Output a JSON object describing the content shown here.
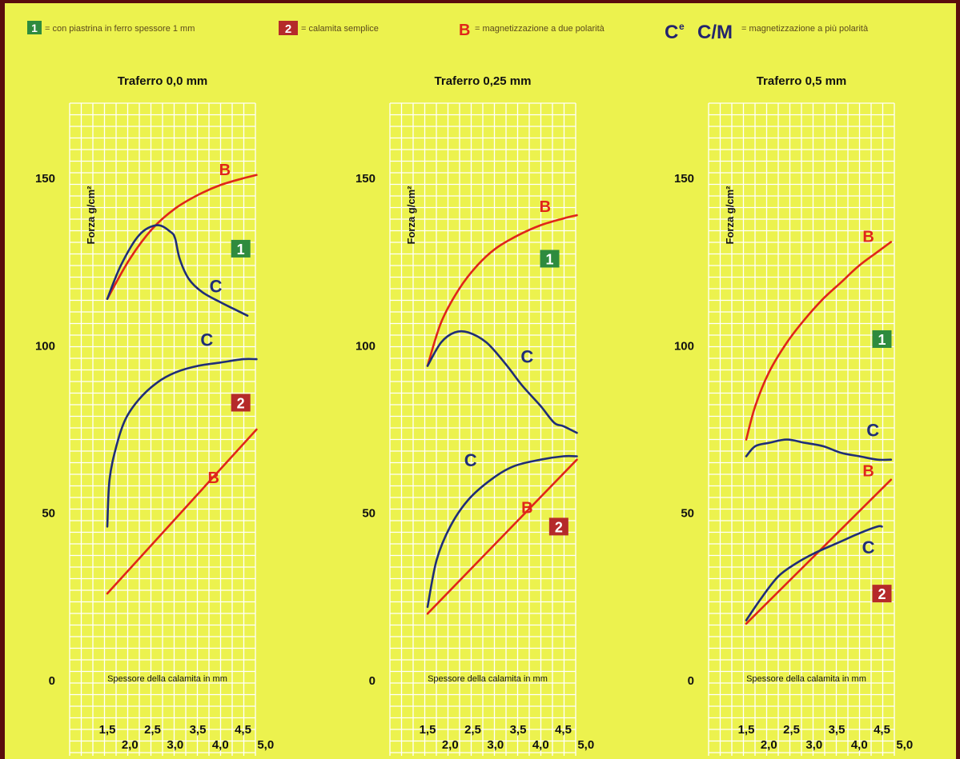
{
  "legend": {
    "item1": {
      "badge": "1",
      "text": "= con piastrina in ferro spessore 1 mm",
      "color": "#2e8b3e"
    },
    "item2": {
      "badge": "2",
      "text": "= calamita semplice",
      "color": "#b52a2a"
    },
    "itemB": {
      "symbol": "B",
      "text": "= magnetizzazione a due polarità",
      "color": "#e0251a"
    },
    "itemCM": {
      "symbol_c": "C",
      "sup": "e",
      "symbol_cm": "C/M",
      "text": "= magnetizzazione a più polarità",
      "color": "#1f2d78"
    }
  },
  "colors": {
    "background": "#ecf24e",
    "grid": "#ffffff",
    "series_b": "#e0251a",
    "series_c": "#1f2d78",
    "border": "#5a0d0d"
  },
  "chart_data": [
    {
      "type": "line",
      "title": "Traferro 0,0 mm",
      "ylabel": "Forza g/cm²",
      "xlabel": "Spessore della calamita in mm",
      "ylim": [
        0,
        160
      ],
      "xlim": [
        1.5,
        5.0
      ],
      "y_ticks": [
        "0",
        "50",
        "100",
        "150"
      ],
      "x_ticks_top": [
        "1,5",
        "2,5",
        "3,5",
        "4,5"
      ],
      "x_ticks_bottom": [
        "2,0",
        "3,0",
        "4,0",
        "5,0"
      ],
      "grid": true,
      "series": [
        {
          "name": "B",
          "group": "1",
          "x": [
            1.5,
            2.0,
            2.5,
            3.0,
            3.5,
            4.0,
            4.5,
            4.8
          ],
          "y": [
            114,
            126,
            135,
            141,
            145,
            148,
            150,
            151
          ]
        },
        {
          "name": "C",
          "group": "1",
          "x": [
            1.5,
            1.8,
            2.2,
            2.6,
            2.9,
            3.0,
            3.1,
            3.3,
            3.6,
            4.0,
            4.3,
            4.6
          ],
          "y": [
            114,
            124,
            133,
            136,
            134,
            132,
            126,
            120,
            116,
            113,
            111,
            109
          ]
        },
        {
          "name": "C",
          "group": "2",
          "x": [
            1.5,
            1.55,
            1.7,
            1.9,
            2.2,
            2.6,
            3.0,
            3.5,
            4.0,
            4.5,
            4.8
          ],
          "y": [
            46,
            60,
            70,
            78,
            84,
            89,
            92,
            94,
            95,
            96,
            96
          ]
        },
        {
          "name": "B",
          "group": "2",
          "x": [
            1.5,
            4.8
          ],
          "y": [
            26,
            75
          ]
        }
      ],
      "labels": [
        {
          "text": "B",
          "series": "B",
          "x": 4.1,
          "y": 151
        },
        {
          "text": "C",
          "series": "C",
          "x": 3.9,
          "y": 116
        },
        {
          "text": "C",
          "series": "C",
          "x": 3.7,
          "y": 100
        },
        {
          "text": "B",
          "series": "B",
          "x": 3.85,
          "y": 59
        }
      ],
      "badges": [
        {
          "text": "1",
          "x": 4.45,
          "y": 129
        },
        {
          "text": "2",
          "x": 4.45,
          "y": 83
        }
      ]
    },
    {
      "type": "line",
      "title": "Traferro 0,25 mm",
      "ylabel": "Forza g/cm²",
      "xlabel": "Spessore della calamita in mm",
      "ylim": [
        0,
        160
      ],
      "xlim": [
        1.5,
        5.0
      ],
      "y_ticks": [
        "0",
        "50",
        "100",
        "150"
      ],
      "x_ticks_top": [
        "1,5",
        "2,5",
        "3,5",
        "4,5"
      ],
      "x_ticks_bottom": [
        "2,0",
        "3,0",
        "4,0",
        "5,0"
      ],
      "grid": true,
      "series": [
        {
          "name": "B",
          "group": "1",
          "x": [
            1.5,
            1.8,
            2.2,
            2.6,
            3.0,
            3.5,
            4.0,
            4.5,
            4.8
          ],
          "y": [
            94,
            107,
            117,
            124,
            129,
            133,
            136,
            138,
            139
          ]
        },
        {
          "name": "C",
          "group": "1",
          "x": [
            1.5,
            1.8,
            2.1,
            2.4,
            2.8,
            3.2,
            3.6,
            4.0,
            4.3,
            4.5,
            4.8
          ],
          "y": [
            94,
            101,
            104,
            104,
            101,
            95,
            88,
            82,
            77,
            76,
            74
          ]
        },
        {
          "name": "C",
          "group": "2",
          "x": [
            1.5,
            1.7,
            2.0,
            2.4,
            2.9,
            3.4,
            4.0,
            4.5,
            4.8
          ],
          "y": [
            22,
            36,
            46,
            54,
            60,
            64,
            66,
            67,
            67
          ]
        },
        {
          "name": "B",
          "group": "2",
          "x": [
            1.5,
            4.8
          ],
          "y": [
            20,
            66
          ]
        }
      ],
      "labels": [
        {
          "text": "B",
          "series": "B",
          "x": 4.1,
          "y": 140
        },
        {
          "text": "C",
          "series": "C",
          "x": 3.7,
          "y": 95
        },
        {
          "text": "C",
          "series": "C",
          "x": 2.45,
          "y": 64
        },
        {
          "text": "B",
          "series": "B",
          "x": 3.7,
          "y": 50
        }
      ],
      "badges": [
        {
          "text": "1",
          "x": 4.2,
          "y": 126
        },
        {
          "text": "2",
          "x": 4.4,
          "y": 46
        }
      ]
    },
    {
      "type": "line",
      "title": "Traferro 0,5 mm",
      "ylabel": "Forza g/cm²",
      "xlabel": "Spessore della calamita in mm",
      "ylim": [
        0,
        160
      ],
      "xlim": [
        1.5,
        5.0
      ],
      "y_ticks": [
        "0",
        "50",
        "100",
        "150"
      ],
      "x_ticks_top": [
        "1,5",
        "2,5",
        "3,5",
        "4,5"
      ],
      "x_ticks_bottom": [
        "2,0",
        "3,0",
        "4,0",
        "5,0"
      ],
      "grid": true,
      "series": [
        {
          "name": "B",
          "group": "1",
          "x": [
            1.5,
            1.7,
            2.0,
            2.4,
            2.8,
            3.2,
            3.6,
            4.0,
            4.4,
            4.7
          ],
          "y": [
            72,
            82,
            92,
            101,
            108,
            114,
            119,
            124,
            128,
            131
          ]
        },
        {
          "name": "C",
          "group": "1",
          "x": [
            1.5,
            1.7,
            2.0,
            2.4,
            2.8,
            3.2,
            3.6,
            4.0,
            4.4,
            4.7
          ],
          "y": [
            67,
            70,
            71,
            72,
            71,
            70,
            68,
            67,
            66,
            66
          ]
        },
        {
          "name": "B",
          "group": "2",
          "x": [
            1.5,
            4.7
          ],
          "y": [
            17,
            60
          ]
        },
        {
          "name": "C",
          "group": "2",
          "x": [
            1.5,
            1.8,
            2.2,
            2.6,
            3.0,
            3.5,
            4.0,
            4.4,
            4.5
          ],
          "y": [
            18,
            24,
            31,
            35,
            38,
            41,
            44,
            46,
            46
          ]
        }
      ],
      "labels": [
        {
          "text": "B",
          "series": "B",
          "x": 4.2,
          "y": 131
        },
        {
          "text": "C",
          "series": "C",
          "x": 4.3,
          "y": 73
        },
        {
          "text": "B",
          "series": "B",
          "x": 4.2,
          "y": 61
        },
        {
          "text": "C",
          "series": "C",
          "x": 4.2,
          "y": 38
        }
      ],
      "badges": [
        {
          "text": "1",
          "x": 4.5,
          "y": 102
        },
        {
          "text": "2",
          "x": 4.5,
          "y": 26
        }
      ]
    }
  ]
}
